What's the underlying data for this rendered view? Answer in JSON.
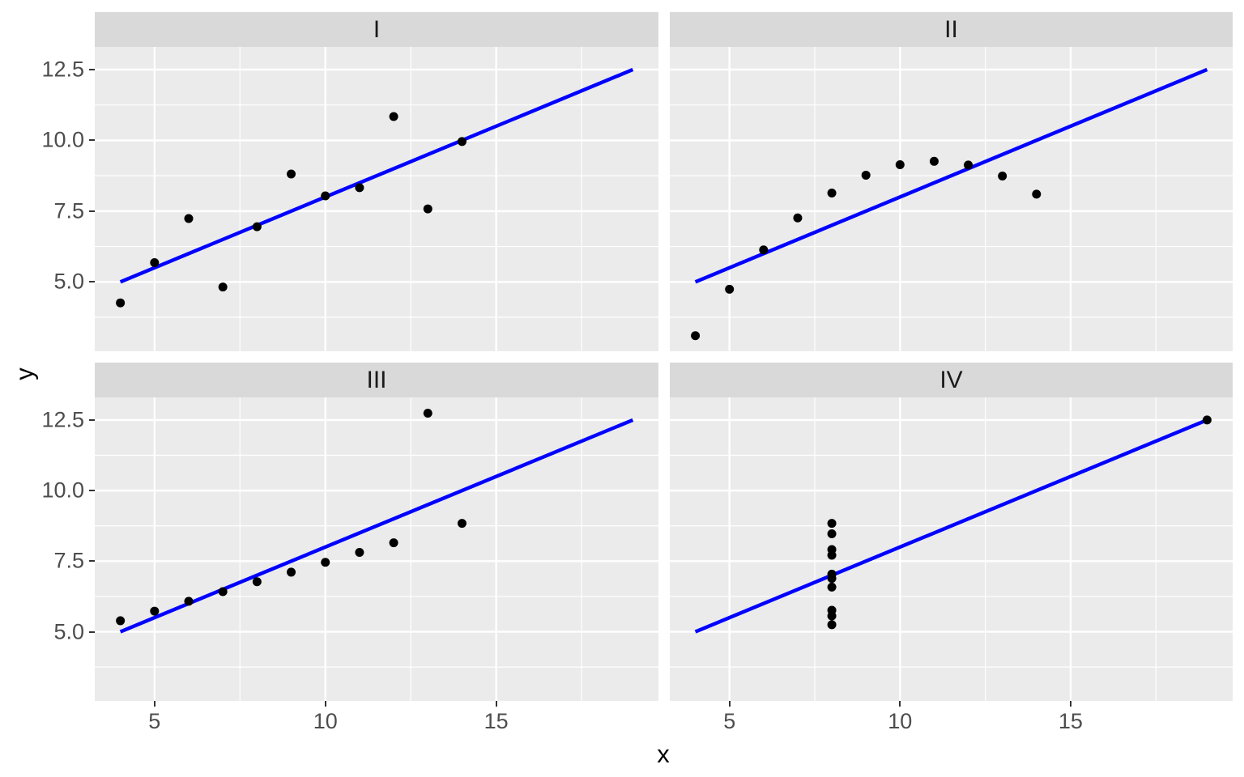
{
  "figure": {
    "xlabel": "x",
    "ylabel": "y",
    "x_domain": [
      3.25,
      19.75
    ],
    "y_domain": [
      2.55,
      13.3
    ],
    "x_tick_values": [
      5,
      10,
      15
    ],
    "x_tick_labels": [
      "5",
      "10",
      "15"
    ],
    "y_tick_values": [
      12.5,
      10.0,
      7.5,
      5.0
    ],
    "y_tick_labels": [
      "12.5",
      "10.0",
      "7.5",
      "5.0"
    ],
    "x_minor_gridlines": [
      7.5,
      12.5,
      17.5
    ],
    "y_minor_gridlines": [
      3.75,
      6.25,
      8.75,
      11.25
    ],
    "grid": "on",
    "legend": "none",
    "colors": {
      "background": "#FFFFFF",
      "panel_bg": "#EBEBEB",
      "strip_bg": "#D9D9D9",
      "gridline": "#FFFFFF",
      "point": "#000000",
      "regression_line": "#0000FF",
      "tick_label": "#4D4D4D",
      "axis_title": "#000000",
      "strip_text": "#1A1A1A",
      "tick_mark": "#333333"
    }
  },
  "chart_data": [
    {
      "type": "scatter",
      "facet": "I",
      "x": [
        10,
        8,
        13,
        9,
        11,
        14,
        6,
        4,
        12,
        7,
        5
      ],
      "y": [
        8.04,
        6.95,
        7.58,
        8.81,
        8.33,
        9.96,
        7.24,
        4.26,
        10.84,
        4.82,
        5.68
      ],
      "regression_line": {
        "x": [
          4,
          19
        ],
        "y": [
          5.0,
          12.5
        ]
      }
    },
    {
      "type": "scatter",
      "facet": "II",
      "x": [
        10,
        8,
        13,
        9,
        11,
        14,
        6,
        4,
        12,
        7,
        5
      ],
      "y": [
        9.14,
        8.14,
        8.74,
        8.77,
        9.26,
        8.1,
        6.13,
        3.1,
        9.13,
        7.26,
        4.74
      ],
      "regression_line": {
        "x": [
          4,
          19
        ],
        "y": [
          5.0,
          12.5
        ]
      }
    },
    {
      "type": "scatter",
      "facet": "III",
      "x": [
        10,
        8,
        13,
        9,
        11,
        14,
        6,
        4,
        12,
        7,
        5
      ],
      "y": [
        7.46,
        6.77,
        12.74,
        7.11,
        7.81,
        8.84,
        6.08,
        5.39,
        8.15,
        6.42,
        5.73
      ],
      "regression_line": {
        "x": [
          4,
          19
        ],
        "y": [
          5.0,
          12.5
        ]
      }
    },
    {
      "type": "scatter",
      "facet": "IV",
      "x": [
        8,
        8,
        8,
        8,
        8,
        8,
        8,
        19,
        8,
        8,
        8
      ],
      "y": [
        6.58,
        5.76,
        7.71,
        8.84,
        8.47,
        7.04,
        5.25,
        12.5,
        5.56,
        7.91,
        6.89
      ],
      "regression_line": {
        "x": [
          4,
          19
        ],
        "y": [
          5.0,
          12.5
        ]
      }
    }
  ]
}
